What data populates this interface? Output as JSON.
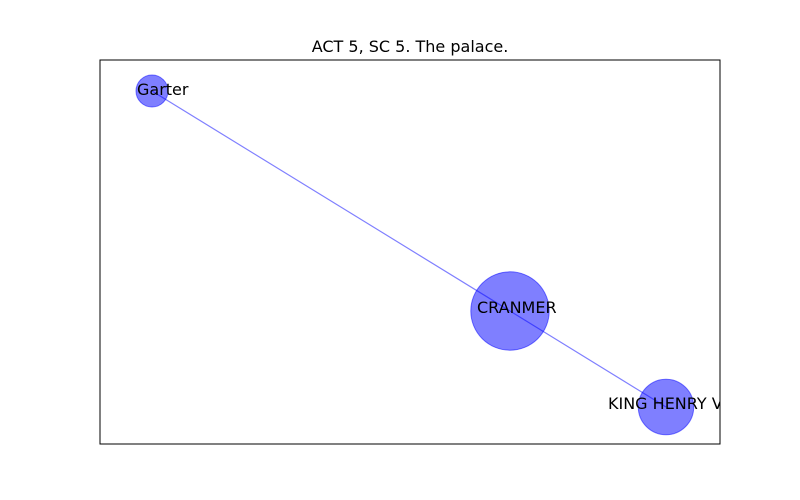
{
  "figure": {
    "title": "ACT 5, SC 5. The palace."
  },
  "network": {
    "node_color": "#0000ff",
    "node_opacity": 0.5,
    "edge_color": "#0000ff",
    "edge_opacity": 0.5,
    "nodes": [
      {
        "id": "garter",
        "label": "Garter",
        "weight": 1
      },
      {
        "id": "cranmer",
        "label": "CRANMER",
        "weight": 6
      },
      {
        "id": "king-henry",
        "label": "KING HENRY VIII",
        "weight": 3
      }
    ],
    "edges": [
      {
        "source": "garter",
        "target": "cranmer"
      },
      {
        "source": "cranmer",
        "target": "king-henry"
      }
    ]
  }
}
